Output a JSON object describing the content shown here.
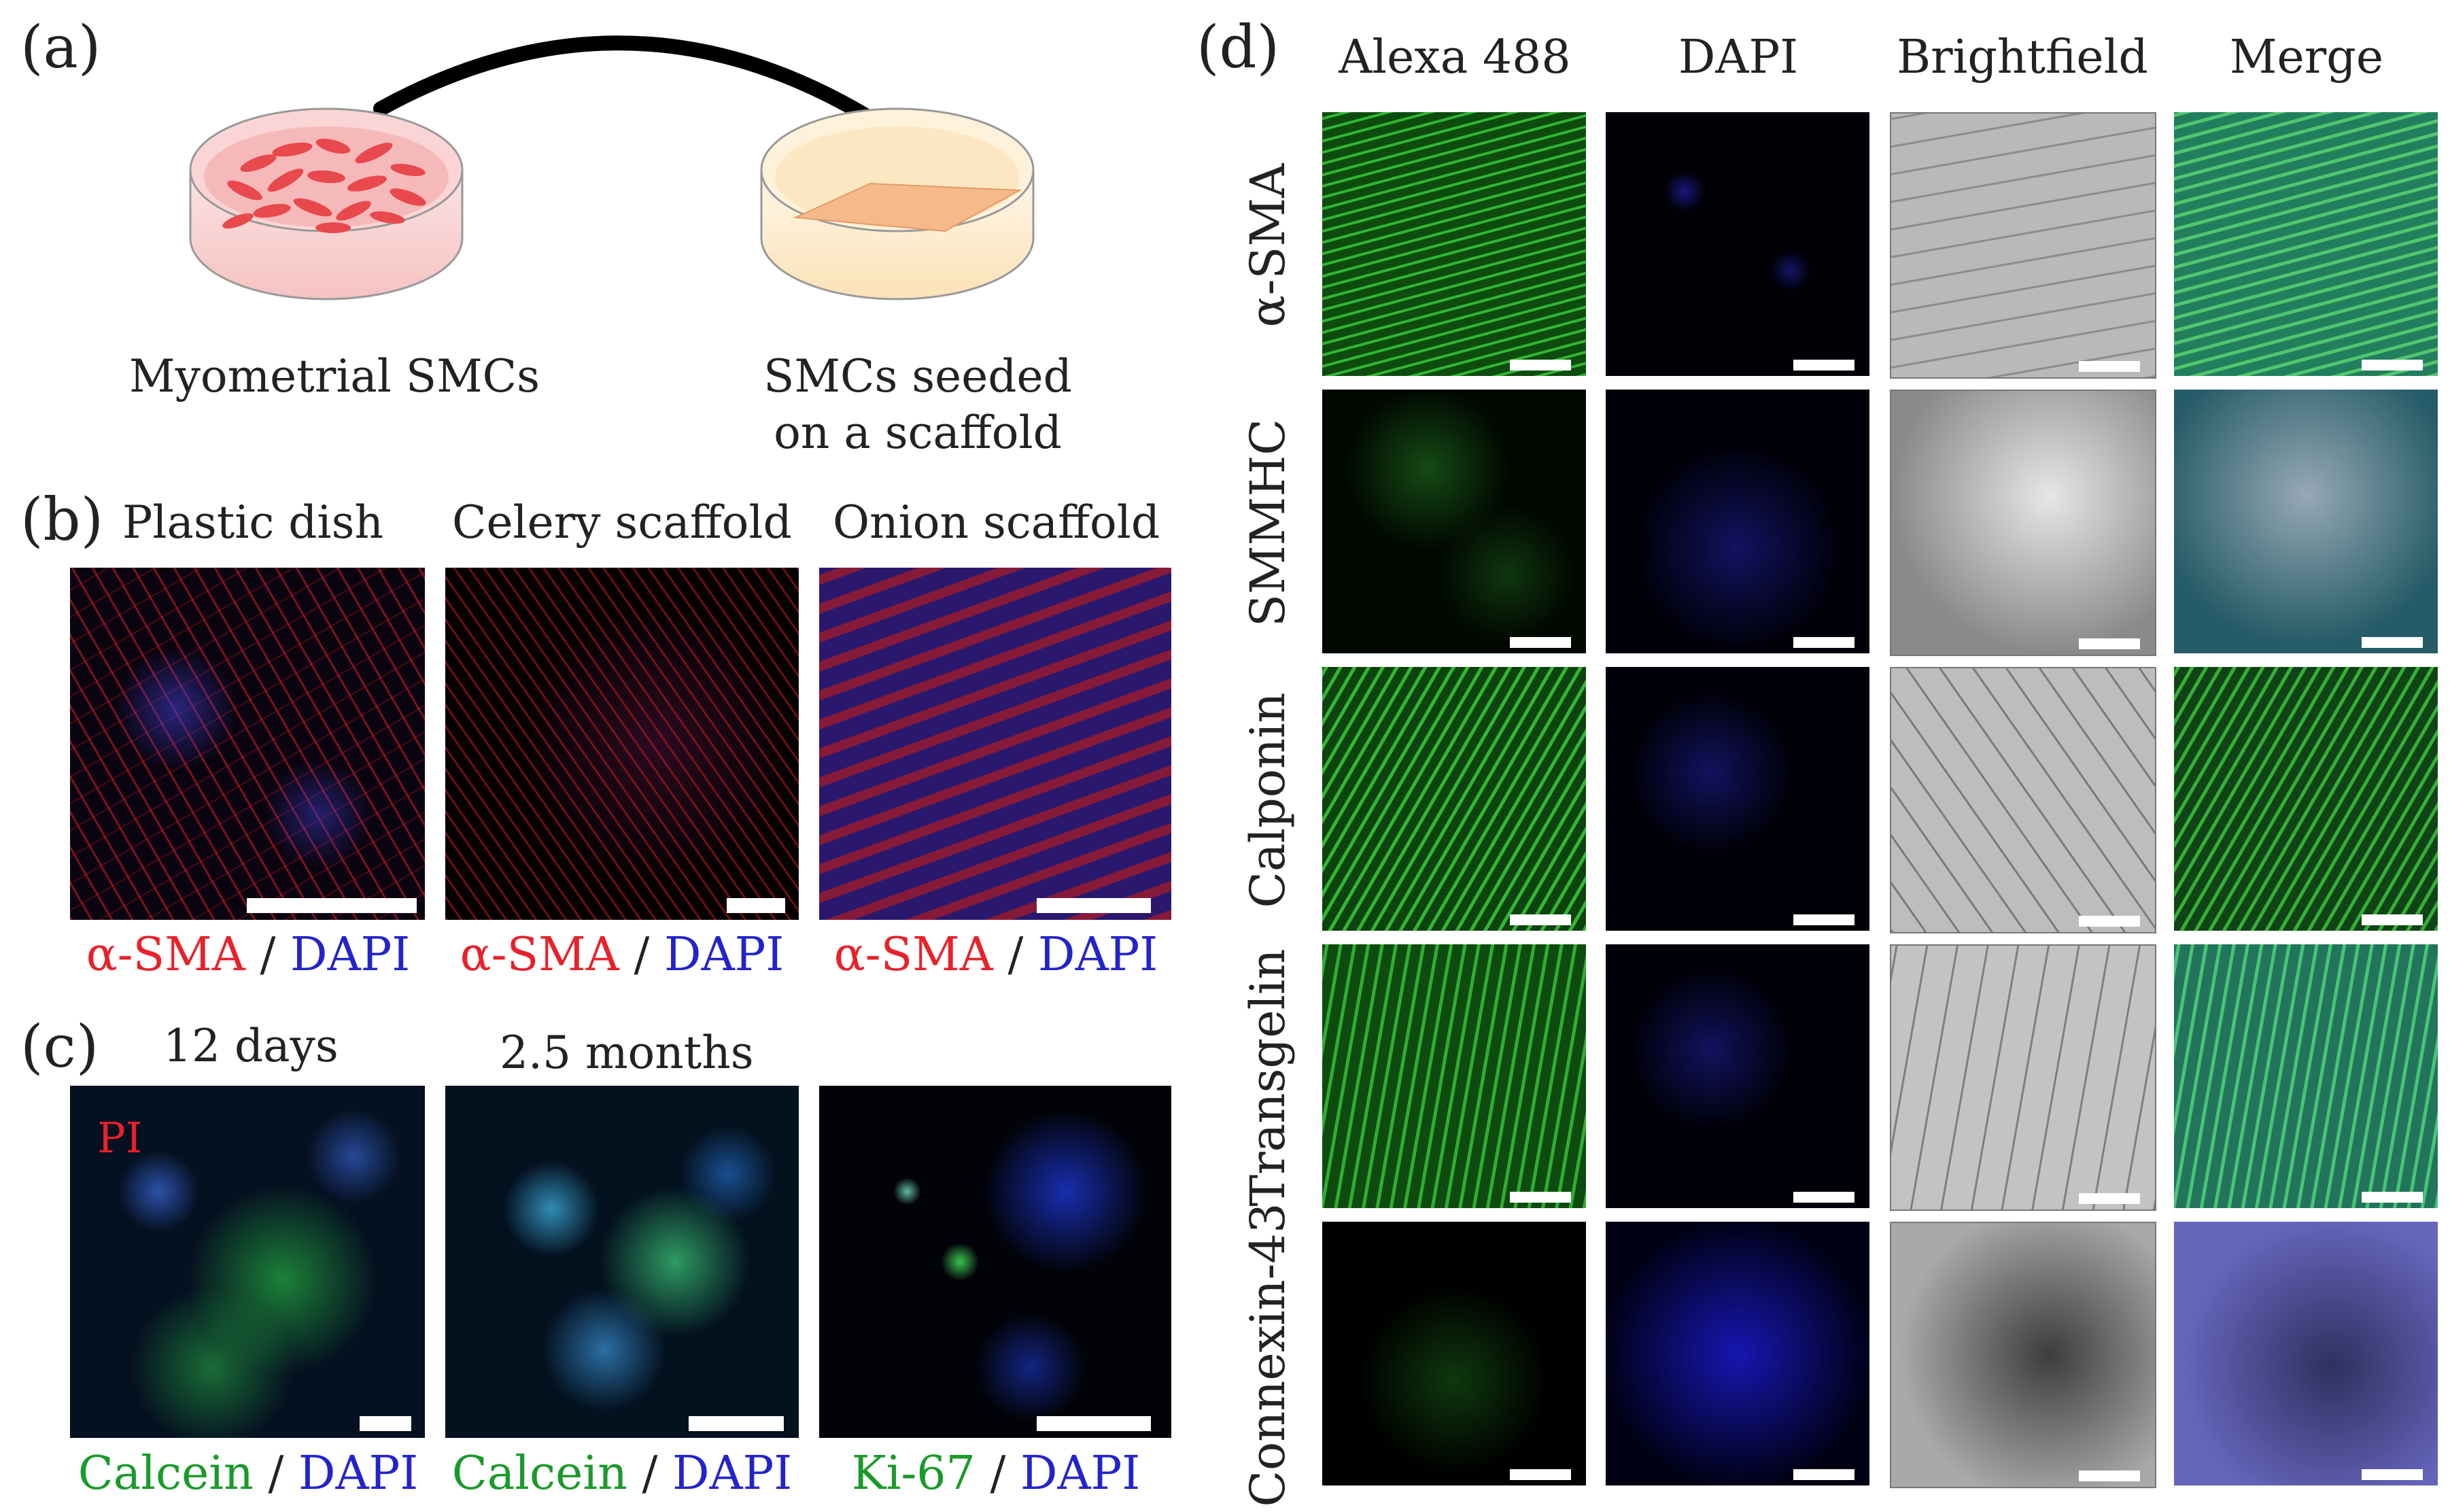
{
  "panel_a": {
    "letter": "(a)",
    "label_left": "Myometrial SMCs",
    "label_right_line1": "SMCs seeded",
    "label_right_line2": "on a scaffold"
  },
  "panel_b": {
    "letter": "(b)",
    "titles": [
      "Plastic dish",
      "Celery scaffold",
      "Onion scaffold"
    ],
    "caption_marker": "α-SMA",
    "caption_sep": " / ",
    "caption_stain": "DAPI"
  },
  "panel_c": {
    "letter": "(c)",
    "title_1": "12 days",
    "title_2": "2.5 months",
    "pi_label": "PI",
    "captions": [
      {
        "marker": "Calcein",
        "sep": " / ",
        "stain": "DAPI"
      },
      {
        "marker": "Calcein",
        "sep": " / ",
        "stain": "DAPI"
      },
      {
        "marker": "Ki-67",
        "sep": " / ",
        "stain": "DAPI"
      }
    ]
  },
  "panel_d": {
    "letter": "(d)",
    "columns": [
      "Alexa 488",
      "DAPI",
      "Brightfield",
      "Merge"
    ],
    "rows": [
      "α-SMA",
      "SMMHC",
      "Calponin",
      "Transgelin",
      "Connexin-43"
    ]
  },
  "colors": {
    "red_marker": "#e8212a",
    "blue_dapi": "#2323cc",
    "green_marker": "#1a9a2a"
  }
}
